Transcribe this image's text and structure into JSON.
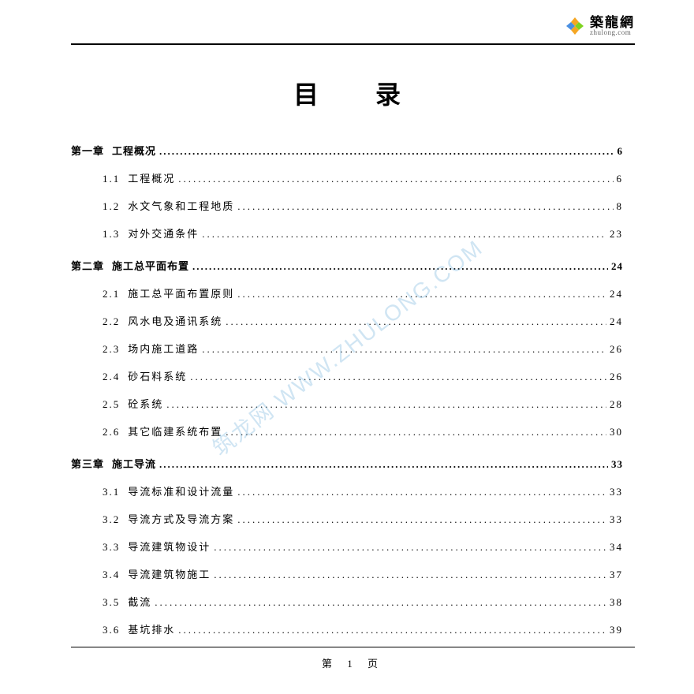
{
  "logo": {
    "cn": "築龍網",
    "en": "zhulong.com"
  },
  "title": "目　录",
  "watermark": "筑龙网 WWW.ZHULONG.COM",
  "pageLabel": "第  1  页",
  "chapters": [
    {
      "label": "第一章",
      "name": "工程概况",
      "page": "6",
      "sections": [
        {
          "num": "1.1",
          "name": "工程概况",
          "page": "6"
        },
        {
          "num": "1.2",
          "name": "水文气象和工程地质",
          "page": "8"
        },
        {
          "num": "1.3",
          "name": "对外交通条件",
          "page": "23"
        }
      ]
    },
    {
      "label": "第二章",
      "name": "施工总平面布置",
      "page": "24",
      "sections": [
        {
          "num": "2.1",
          "name": "施工总平面布置原则",
          "page": "24"
        },
        {
          "num": "2.2",
          "name": "风水电及通讯系统",
          "page": "24"
        },
        {
          "num": "2.3",
          "name": "场内施工道路",
          "page": "26"
        },
        {
          "num": "2.4",
          "name": "砂石料系统",
          "page": "26"
        },
        {
          "num": "2.5",
          "name": "砼系统",
          "page": "28"
        },
        {
          "num": "2.6",
          "name": "其它临建系统布置",
          "page": "30"
        }
      ]
    },
    {
      "label": "第三章",
      "name": "施工导流",
      "page": "33",
      "sections": [
        {
          "num": "3.1",
          "name": "导流标准和设计流量",
          "page": "33"
        },
        {
          "num": "3.2",
          "name": "导流方式及导流方案",
          "page": "33"
        },
        {
          "num": "3.3",
          "name": "导流建筑物设计",
          "page": "34"
        },
        {
          "num": "3.4",
          "name": "导流建筑物施工",
          "page": "37"
        },
        {
          "num": "3.5",
          "name": "截流",
          "page": "38"
        },
        {
          "num": "3.6",
          "name": "基坑排水",
          "page": "39"
        }
      ]
    }
  ]
}
